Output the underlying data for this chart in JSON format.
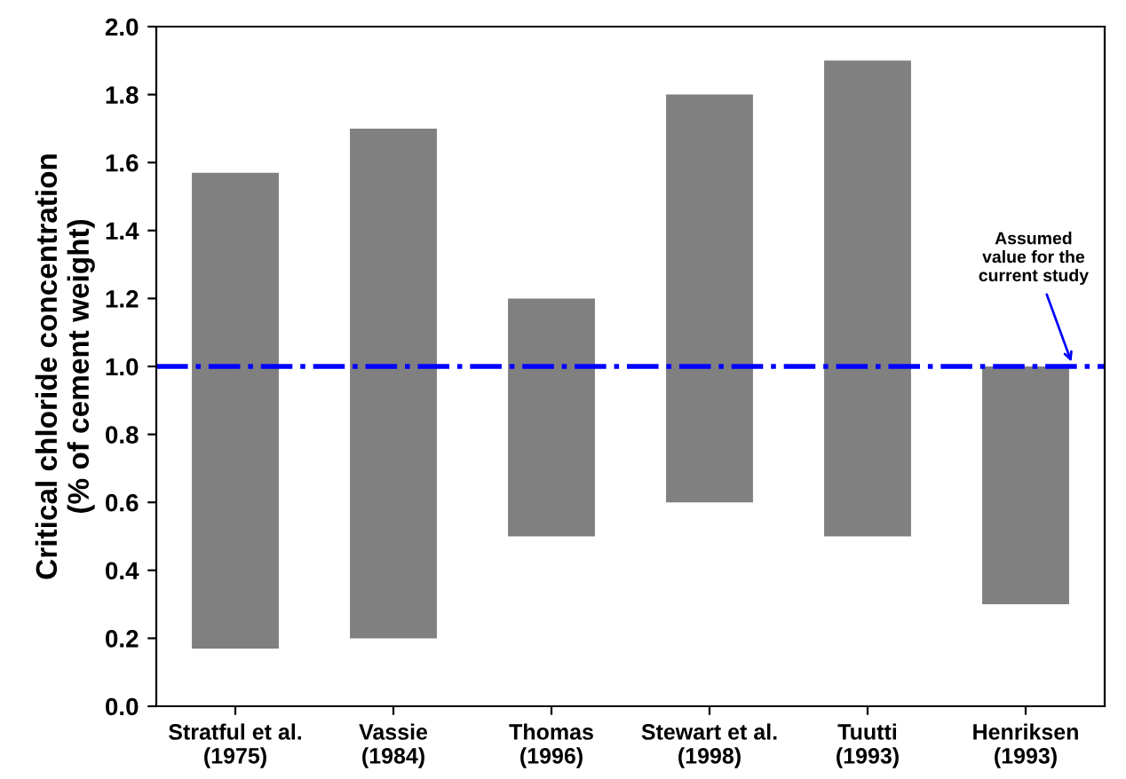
{
  "chart_data": {
    "type": "bar",
    "ylabel": "Critical chloride concentration\n(% of cement weight)",
    "categories": [
      "Stratful et al.\n(1975)",
      "Vassie\n(1984)",
      "Thomas\n(1996)",
      "Stewart et al.\n(1998)",
      "Tuutti\n(1993)",
      "Henriksen\n(1993)"
    ],
    "base": [
      0.17,
      0.2,
      0.5,
      0.6,
      0.5,
      0.3
    ],
    "values": [
      1.4,
      1.5,
      0.7,
      1.2,
      1.4,
      0.7
    ],
    "color": "#808080",
    "ylim": [
      0,
      2.0
    ],
    "yticks": [
      {
        "value": 0,
        "label": "0.0"
      },
      {
        "value": 0.2,
        "label": "0.2"
      },
      {
        "value": 0.4,
        "label": "0.4"
      },
      {
        "value": 0.6,
        "label": "0.6"
      },
      {
        "value": 0.8,
        "label": "0.8"
      },
      {
        "value": 1.0,
        "label": "1.0"
      },
      {
        "value": 1.2,
        "label": "1.2"
      },
      {
        "value": 1.4,
        "label": "1.4"
      },
      {
        "value": 1.6,
        "label": "1.6"
      },
      {
        "value": 1.8,
        "label": "1.8"
      },
      {
        "value": 2.0,
        "label": "2.0"
      }
    ],
    "ref_lines": [
      {
        "axis": "y",
        "value": 1.0,
        "label": "Assumed\nvalue for the\ncurrent study",
        "color": "#0000ff",
        "line_style": "dashdot"
      }
    ],
    "grid": false,
    "legend": false
  }
}
